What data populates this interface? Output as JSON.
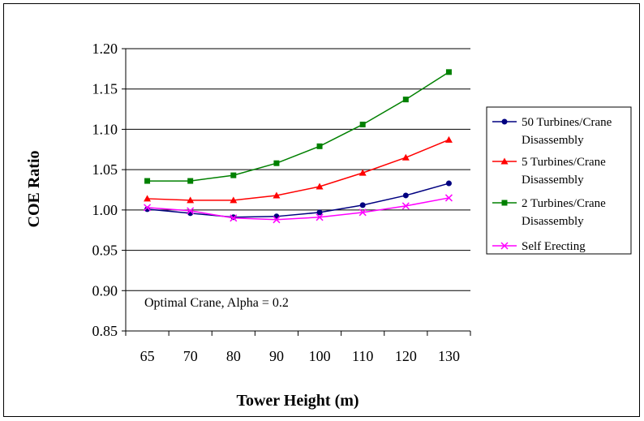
{
  "chart_data": {
    "type": "line",
    "categories": [
      "65",
      "70",
      "80",
      "90",
      "100",
      "110",
      "120",
      "130"
    ],
    "ylabel": "COE Ratio",
    "xlabel": "Tower Height (m)",
    "ylim": [
      0.85,
      1.2
    ],
    "yticks": [
      "0.85",
      "0.90",
      "0.95",
      "1.00",
      "1.05",
      "1.10",
      "1.15",
      "1.20"
    ],
    "ytick_values": [
      0.85,
      0.9,
      0.95,
      1.0,
      1.05,
      1.1,
      1.15,
      1.2
    ],
    "grid": true,
    "legend": "right",
    "annotation": "Optimal Crane, Alpha = 0.2",
    "series": [
      {
        "name_lines": [
          "50 Turbines/Crane",
          "Disassembly"
        ],
        "color": "#000080",
        "marker": "circle",
        "values": [
          1.001,
          0.996,
          0.991,
          0.992,
          0.997,
          1.006,
          1.018,
          1.033
        ]
      },
      {
        "name_lines": [
          "5 Turbines/Crane",
          "Disassembly"
        ],
        "color": "#ff0000",
        "marker": "triangle",
        "values": [
          1.014,
          1.012,
          1.012,
          1.018,
          1.029,
          1.046,
          1.065,
          1.087
        ]
      },
      {
        "name_lines": [
          "2 Turbines/Crane",
          "Disassembly"
        ],
        "color": "#008000",
        "marker": "square",
        "values": [
          1.036,
          1.036,
          1.043,
          1.058,
          1.079,
          1.106,
          1.137,
          1.171
        ]
      },
      {
        "name_lines": [
          "Self Erecting"
        ],
        "color": "#ff00ff",
        "marker": "x",
        "values": [
          1.003,
          0.999,
          0.99,
          0.988,
          0.991,
          0.997,
          1.005,
          1.015
        ]
      }
    ]
  }
}
